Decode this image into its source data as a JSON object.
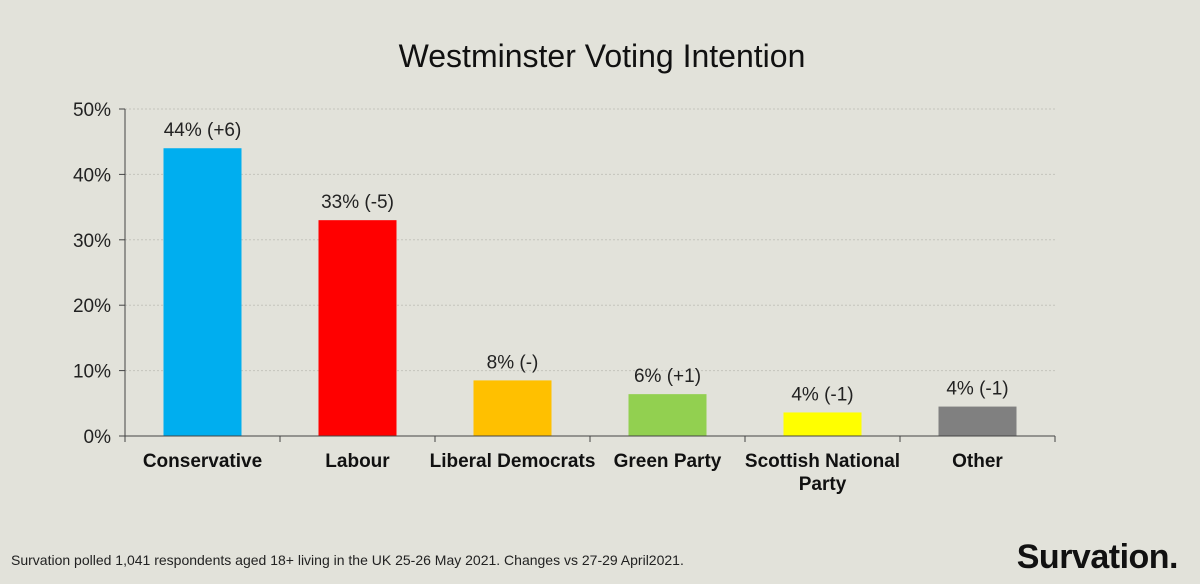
{
  "chart_data": {
    "type": "bar",
    "title": "Westminster Voting Intention",
    "categories": [
      [
        "Conservative"
      ],
      [
        "Labour"
      ],
      [
        "Liberal Democrats"
      ],
      [
        "Green Party"
      ],
      [
        "Scottish National",
        "Party"
      ],
      [
        "Other"
      ]
    ],
    "values": [
      44,
      33,
      8.5,
      6.4,
      3.6,
      4.5
    ],
    "data_labels": [
      "44% (+6)",
      "33% (-5)",
      "8% (-)",
      "6% (+1)",
      "4% (-1)",
      "4% (-1)"
    ],
    "colors": [
      "#00aeef",
      "#ff0000",
      "#ffc000",
      "#92d050",
      "#ffff00",
      "#808080"
    ],
    "ylim": [
      0,
      50
    ],
    "yticks": [
      "0%",
      "10%",
      "20%",
      "30%",
      "40%",
      "50%"
    ],
    "ytick_values": [
      0,
      10,
      20,
      30,
      40,
      50
    ],
    "grid": true,
    "xlabel": "",
    "ylabel": ""
  },
  "footer": {
    "note": "Survation polled 1,041 respondents aged 18+ living in the UK 25-26 May 2021. Changes vs 27-29 April2021.",
    "brand": "Survation."
  }
}
